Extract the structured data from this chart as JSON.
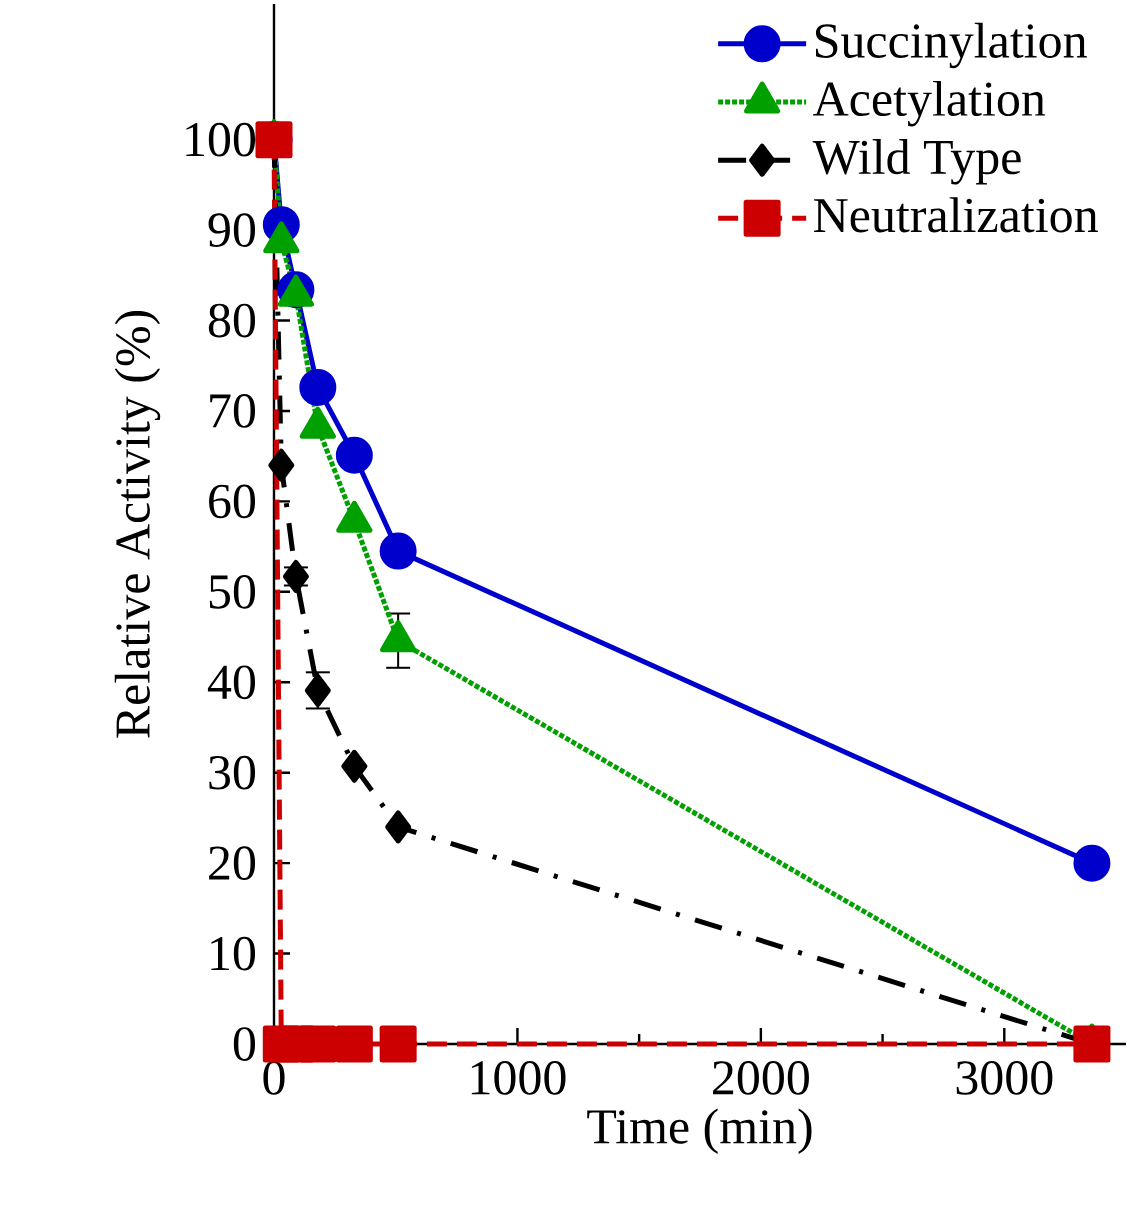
{
  "chart_data": {
    "type": "line",
    "xlabel": "Time (min)",
    "ylabel": "Relative Activity (%)",
    "xlim": [
      0,
      3500
    ],
    "ylim": [
      0,
      115
    ],
    "xticks": [
      0,
      1000,
      2000,
      3000
    ],
    "yticks": [
      0,
      10,
      20,
      30,
      40,
      50,
      60,
      70,
      80,
      90,
      100
    ],
    "x": [
      0,
      30,
      90,
      180,
      330,
      510,
      3360
    ],
    "legend": "top right",
    "series": [
      {
        "name": "Succinylation",
        "color": "#0000cc",
        "marker": "circle",
        "line_style": "solid",
        "values": [
          100,
          90.6,
          83.4,
          72.6,
          65.1,
          54.5,
          20
        ]
      },
      {
        "name": "Acetylation",
        "color": "#00a000",
        "marker": "triangle",
        "line_style": "dotted",
        "values": [
          100,
          88.7,
          82.8,
          68.2,
          57.8,
          44.6,
          0
        ],
        "errors": [
          null,
          null,
          null,
          null,
          null,
          3,
          null
        ]
      },
      {
        "name": "Wild Type",
        "color": "#000000",
        "marker": "diamond",
        "line_style": "dashdot",
        "values": [
          100,
          64,
          51.7,
          39.1,
          30.7,
          24,
          0
        ],
        "errors": [
          null,
          null,
          1,
          2,
          null,
          null,
          null
        ]
      },
      {
        "name": "Neutralization",
        "color": "#cc0000",
        "marker": "square",
        "line_style": "dashed",
        "values": [
          100,
          0,
          0,
          0,
          0,
          0,
          0
        ]
      }
    ]
  }
}
